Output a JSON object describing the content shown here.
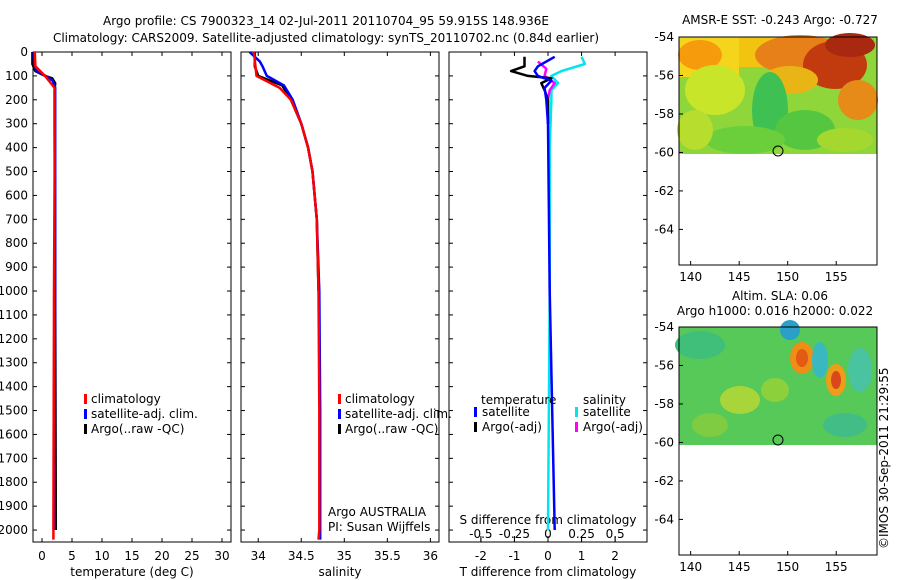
{
  "header": {
    "line1": "Argo profile: CS 7900323_14 02-Jul-2011 20110704_95 59.915S 148.936E",
    "line2": "Climatology: CARS2009. Satellite-adjusted climatology: synTS_20110702.nc (0.84d earlier)"
  },
  "colors": {
    "climatology": "#ff0000",
    "satellite": "#0000ff",
    "argo": "#000000",
    "sat_salinity": "#00e5ee",
    "argo_salinity_adj": "#ff00ff"
  },
  "chart_data": [
    {
      "id": "temperature",
      "type": "line",
      "xlabel": "temperature (deg C)",
      "ylabel": "",
      "xlim": [
        -1.5,
        31.5
      ],
      "ylim": [
        2050,
        0
      ],
      "xticks": [
        "0",
        "5",
        "10",
        "15",
        "20",
        "25",
        "30"
      ],
      "xtick_values": [
        0,
        5,
        10,
        15,
        20,
        25,
        30
      ],
      "yticks": [
        "0",
        "100",
        "200",
        "300",
        "400",
        "500",
        "600",
        "700",
        "800",
        "900",
        "1000",
        "1100",
        "1200",
        "1300",
        "1400",
        "1500",
        "1600",
        "1700",
        "1800",
        "1900",
        "2000"
      ],
      "legend": [
        "climatology",
        "satellite-adj. clim.",
        "Argo(..raw -QC)"
      ],
      "legend_keys": [
        "climatology",
        "satellite",
        "argo"
      ],
      "series": [
        {
          "key": "argo",
          "depth": [
            0,
            50,
            80,
            100,
            110,
            130,
            160,
            200,
            300,
            1000,
            2000
          ],
          "values": [
            -1.6,
            -1.6,
            -1.1,
            0.5,
            1.7,
            2.2,
            2.1,
            2.1,
            2.1,
            2.2,
            2.3
          ]
        },
        {
          "key": "satellite",
          "depth": [
            0,
            50,
            80,
            100,
            120,
            150,
            200,
            300,
            1000,
            2000
          ],
          "values": [
            -1.4,
            -1.3,
            -0.9,
            0.6,
            1.8,
            2.2,
            2.2,
            2.2,
            2.2,
            2.1
          ]
        },
        {
          "key": "climatology",
          "depth": [
            0,
            60,
            100,
            150,
            200,
            500,
            1000,
            2000,
            2040
          ],
          "values": [
            -1.2,
            -1.1,
            0.5,
            2.1,
            2.1,
            2.1,
            2.0,
            1.9,
            1.9
          ]
        }
      ]
    },
    {
      "id": "salinity",
      "type": "line",
      "xlabel": "salinity",
      "ylabel": "",
      "xlim": [
        33.8,
        36.1
      ],
      "ylim": [
        2050,
        0
      ],
      "xticks": [
        "34",
        "34.5",
        "35",
        "35.5",
        "36"
      ],
      "xtick_values": [
        34,
        34.5,
        35,
        35.5,
        36
      ],
      "legend": [
        "climatology",
        "satellite-adj. clim.",
        "Argo(..raw -QC)"
      ],
      "legend_keys": [
        "climatology",
        "satellite",
        "argo"
      ],
      "annotation": [
        "Argo AUSTRALIA",
        "PI: Susan Wijffels"
      ],
      "series": [
        {
          "key": "argo",
          "depth": [
            0,
            60,
            100,
            140,
            200,
            300,
            400,
            500,
            700,
            1000
          ],
          "values": [
            33.96,
            33.96,
            34.0,
            34.28,
            34.38,
            34.5,
            34.58,
            34.63,
            34.68,
            34.7
          ]
        },
        {
          "key": "satellite",
          "depth": [
            0,
            40,
            60,
            100,
            140,
            200,
            300,
            400,
            500,
            700,
            1000,
            1500,
            2000,
            2040
          ],
          "values": [
            33.9,
            34.02,
            34.05,
            34.1,
            34.3,
            34.4,
            34.5,
            34.58,
            34.63,
            34.68,
            34.71,
            34.72,
            34.72,
            34.72
          ]
        },
        {
          "key": "climatology",
          "depth": [
            0,
            100,
            150,
            200,
            300,
            400,
            500,
            700,
            1000,
            1500,
            2000,
            2040
          ],
          "values": [
            33.95,
            33.98,
            34.25,
            34.38,
            34.5,
            34.58,
            34.63,
            34.68,
            34.7,
            34.71,
            34.71,
            34.7
          ]
        }
      ]
    },
    {
      "id": "difference",
      "type": "line",
      "xlabel": "T difference from climatology",
      "xlabel_top": "S difference from climatology",
      "xlim": [
        -2.95,
        2.95
      ],
      "ylim": [
        2050,
        0
      ],
      "xticks": [
        "-2",
        "-1",
        "0",
        "1",
        "2"
      ],
      "xtick_values": [
        -2,
        -1,
        0,
        1,
        2
      ],
      "sticks": [
        "-0.5",
        "-0.25",
        "0",
        "0.25",
        "0.5"
      ],
      "stick_values": [
        -0.5,
        -0.25,
        0,
        0.25,
        0.5
      ],
      "legend_headers": [
        "temperature",
        "salinity"
      ],
      "legend": [
        "satellite",
        "Argo(-adj)",
        "satellite",
        "Argo(-adj)"
      ],
      "legend_keys": [
        "satellite",
        "argo",
        "sat_salinity",
        "argo_salinity_adj"
      ],
      "series": [
        {
          "key": "sat_salinity",
          "depth": [
            20,
            50,
            80,
            100,
            130,
            160,
            200,
            400,
            1000,
            2000
          ],
          "values": [
            1.0,
            1.1,
            0.4,
            0.1,
            0.3,
            0.1,
            0.1,
            0.05,
            0.05,
            0.0
          ]
        },
        {
          "key": "argo_salinity_adj",
          "depth": [
            40,
            70,
            100,
            130,
            160,
            200,
            300
          ],
          "values": [
            -0.3,
            -0.05,
            -0.1,
            0.2,
            0.05,
            0.0,
            0.0
          ]
        },
        {
          "key": "argo",
          "depth": [
            20,
            60,
            80,
            100,
            110,
            130,
            160,
            200,
            300
          ],
          "values": [
            -0.7,
            -0.7,
            -1.1,
            -0.6,
            0.1,
            -0.2,
            -0.1,
            0.0,
            0.0
          ]
        },
        {
          "key": "satellite",
          "depth": [
            20,
            60,
            80,
            100,
            120,
            150,
            200,
            300,
            1000,
            2000
          ],
          "values": [
            0.2,
            -0.3,
            -0.4,
            -0.3,
            0.1,
            -0.1,
            -0.05,
            0.0,
            0.05,
            0.2
          ]
        }
      ]
    }
  ],
  "maps": {
    "sst": {
      "title": "AMSR-E SST: -0.243 Argo: -0.727",
      "xticks": [
        "140",
        "145",
        "150",
        "155"
      ],
      "yticks": [
        "-54",
        "-56",
        "-58",
        "-60",
        "-62",
        "-64"
      ]
    },
    "sla": {
      "title1": "Altim. SLA: 0.06",
      "title2": "Argo h1000: 0.016 h2000: 0.022",
      "xticks": [
        "140",
        "145",
        "150",
        "155"
      ],
      "yticks": [
        "-54",
        "-56",
        "-58",
        "-60",
        "-62",
        "-64"
      ]
    }
  },
  "credit": "©IMOS 30-Sep-2011 21:29:55"
}
